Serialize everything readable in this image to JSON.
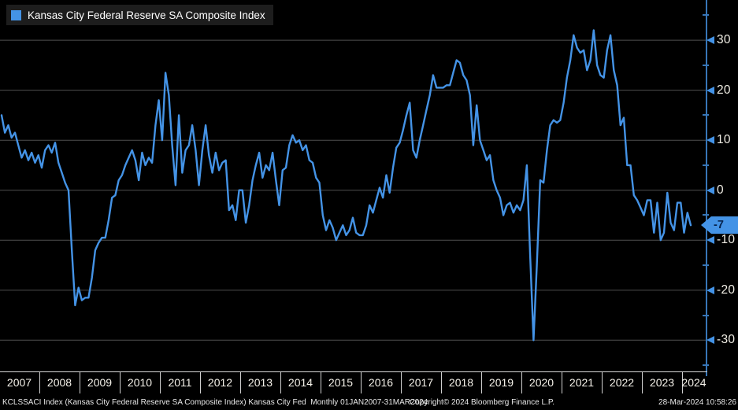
{
  "legend": {
    "label": "Kansas City Federal Reserve SA Composite Index",
    "swatch_color": "#4493e6"
  },
  "chart_data": {
    "type": "line",
    "title": "Kansas City Federal Reserve SA Composite Index",
    "frequency": "monthly",
    "start": "2007-01",
    "end": "2024-03",
    "values": [
      15,
      11.5,
      13,
      10.5,
      11.5,
      9,
      6.5,
      8,
      6,
      7.5,
      5.5,
      7,
      4.5,
      8,
      9,
      7.5,
      9.5,
      5.5,
      3.5,
      1.5,
      0,
      -12,
      -23,
      -19.5,
      -22,
      -21.5,
      -21.5,
      -17.5,
      -12,
      -10.5,
      -9.5,
      -9.5,
      -6,
      -1.5,
      -1,
      2,
      3,
      5,
      6.5,
      8,
      6,
      2,
      7.5,
      5,
      6.5,
      5.5,
      13,
      18,
      10,
      23.5,
      19,
      9,
      1,
      15,
      3.5,
      8,
      9,
      13,
      8,
      1,
      8,
      13,
      7,
      3.5,
      7.5,
      4,
      5.5,
      6,
      -4,
      -3,
      -6,
      0,
      0,
      -6.5,
      -3,
      2,
      5,
      7.5,
      2.5,
      5,
      4,
      7.5,
      2,
      -3,
      4,
      4.5,
      9,
      11,
      9.5,
      10,
      8,
      9,
      6,
      5.5,
      2.5,
      1.5,
      -5,
      -8,
      -6,
      -7.5,
      -10,
      -8.5,
      -7,
      -9,
      -8,
      -5.5,
      -8.5,
      -9,
      -9,
      -7,
      -3,
      -4.5,
      -2,
      0.5,
      -1.5,
      3,
      -0.5,
      4.5,
      8.5,
      9.5,
      12,
      15,
      17.5,
      8,
      6.5,
      10,
      13,
      16,
      19,
      23,
      20.5,
      20.5,
      20.5,
      21,
      21,
      23.5,
      26,
      25.5,
      23,
      22,
      19,
      9,
      17,
      10,
      8,
      6,
      7,
      2,
      0,
      -1.5,
      -5,
      -3,
      -2.5,
      -4.5,
      -3,
      -4,
      -2,
      5,
      -13,
      -30,
      -15,
      2,
      1.5,
      8,
      13,
      14,
      13.5,
      14,
      17.5,
      22.5,
      26,
      31,
      28.5,
      27.5,
      28,
      24,
      26,
      32,
      25,
      23,
      22.5,
      28,
      31,
      24,
      21,
      13,
      14.5,
      5,
      5,
      -1,
      -2,
      -3.5,
      -5,
      -2,
      -2,
      -8.5,
      -2.5,
      -10,
      -8.5,
      -0.5,
      -6.5,
      -8,
      -2.5,
      -2.5,
      -8.5,
      -4.5,
      -7
    ],
    "last_value": -7,
    "ylim": [
      -35,
      35
    ],
    "y_ticks_major": [
      30,
      20,
      10,
      0,
      -10,
      -20,
      -30
    ],
    "y_ticks_minor": [
      35,
      25,
      15,
      5,
      -5,
      -15,
      -25,
      -35
    ],
    "x_tick_years": [
      "2007",
      "2008",
      "2009",
      "2010",
      "2011",
      "2012",
      "2013",
      "2014",
      "2015",
      "2016",
      "2017",
      "2018",
      "2019",
      "2020",
      "2021",
      "2022",
      "2023",
      "2024"
    ],
    "grid": "horizontal-only",
    "legend_position": "top-left",
    "line_color": "#4493e6",
    "axis_color": "#3776b8",
    "grid_color": "#4f4f4f"
  },
  "axis": {
    "last_value_label": "-7"
  },
  "footer": {
    "left": "KCLSSACI Index (Kansas City Federal Reserve SA Composite Index) Kansas City Fed  Monthly 01JAN2007-31MAR2024",
    "center": "Copyright© 2024 Bloomberg Finance L.P.",
    "right": "28-Mar-2024 10:58:26"
  }
}
